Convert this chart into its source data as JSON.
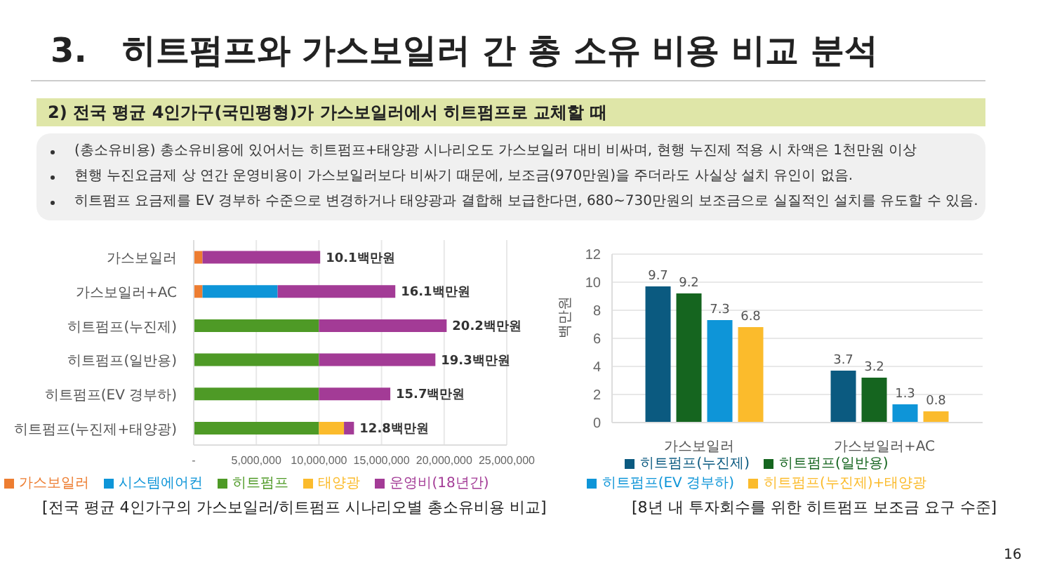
{
  "chart_data": [
    {
      "type": "bar",
      "orientation": "horizontal",
      "stacked": true,
      "title": "3.   히트펌프와 가스보일러 간 총 소유 비용 비교 분석",
      "subtitle": "2) 전국 평균 4인가구(국민평형)가 가스보일러에서 히트펌프로 교체할 때",
      "annotations": [
        "(총소유비용) 총소유비용에 있어서는 히트펌프+태양광 시나리오도 가스보일러 대비 비싸며, 현행 누진제 적용 시 차액은 1천만원 이상",
        "현행 누진요금제 상 연간 운영비용이 가스보일러보다 비싸기 때문에, 보조금(970만원)을 주더라도 사실상 설치 유인이 없음.",
        "히트펌프 요금제를 EV 경부하 수준으로 변경하거나 태양광과 결합해 보급한다면, 680~730만원의 보조금으로 실질적인 설치를 유도할 수 있음.",
        "[전국 평균 4인가구의 가스보일러/히트펌프 시나리오별 총소유비용 비교]",
        {
          "text": "10.1백만원",
          "x": 10100000,
          "y": "가스보일러"
        },
        {
          "text": "16.1백만원",
          "x": 16100000,
          "y": "가스보일러+AC"
        },
        {
          "text": "20.2백만원",
          "x": 20200000,
          "y": "히트펌프(누진제)"
        },
        {
          "text": "19.3백만원",
          "x": 19300000,
          "y": "히트펌프(일반용)"
        },
        {
          "text": "15.7백만원",
          "x": 15700000,
          "y": "히트펌프(EV 경부하)"
        },
        {
          "text": "12.8백만원",
          "x": 12800000,
          "y": "히트펌프(누진제+태양광)"
        }
      ],
      "categories": [
        "가스보일러",
        "가스보일러+AC",
        "히트펌프(누진제)",
        "히트펌프(일반용)",
        "히트펌프(EV 경부하)",
        "히트펌프(누진제+태양광)"
      ],
      "series": [
        {
          "name": "가스보일러",
          "color": "#ed7d31",
          "values": [
            700000,
            700000,
            0,
            0,
            0,
            0
          ]
        },
        {
          "name": "시스템에어컨",
          "color": "#0e95d8",
          "values": [
            0,
            6000000,
            0,
            0,
            0,
            0
          ]
        },
        {
          "name": "히트펌프",
          "color": "#4e9a26",
          "values": [
            0,
            0,
            10000000,
            10000000,
            10000000,
            10000000
          ]
        },
        {
          "name": "태양광",
          "color": "#fbbb2c",
          "values": [
            0,
            0,
            0,
            0,
            0,
            2000000
          ]
        },
        {
          "name": "운영비(18년간)",
          "color": "#a33b96",
          "values": [
            9400000,
            9400000,
            10200000,
            9300000,
            5700000,
            800000
          ]
        }
      ],
      "xlim": [
        0,
        25000000
      ],
      "xticks": [
        {
          "value": 0,
          "label": "-"
        },
        {
          "value": 5000000,
          "label": "5,000,000"
        },
        {
          "value": 10000000,
          "label": "10,000,000"
        },
        {
          "value": 15000000,
          "label": "15,000,000"
        },
        {
          "value": 20000000,
          "label": "20,000,000"
        },
        {
          "value": 25000000,
          "label": "25,000,000"
        }
      ],
      "grid": "x",
      "legend": "bottom"
    },
    {
      "type": "bar",
      "ylabel": "백만원",
      "annotations": [
        "[8년 내 투자회수를 위한 히트펌프 보조금 요구 수준]",
        "16"
      ],
      "categories": [
        "가스보일러",
        "가스보일러+AC"
      ],
      "series": [
        {
          "name": "히트펌프(누진제)",
          "color": "#0b5a80",
          "values": [
            9.7,
            3.7
          ]
        },
        {
          "name": "히트펌프(일반용)",
          "color": "#15651f",
          "values": [
            9.2,
            3.2
          ]
        },
        {
          "name": "히트펌프(EV 경부하)",
          "color": "#0e95d8",
          "values": [
            7.3,
            1.3
          ]
        },
        {
          "name": "히트펌프(누진제)+태양광",
          "color": "#fbbb2c",
          "values": [
            6.8,
            0.8
          ]
        }
      ],
      "ylim": [
        0,
        12
      ],
      "yticks": [
        0,
        2,
        4,
        6,
        8,
        10,
        12
      ],
      "grid": "y",
      "legend": "bottom",
      "data_labels": true
    }
  ]
}
